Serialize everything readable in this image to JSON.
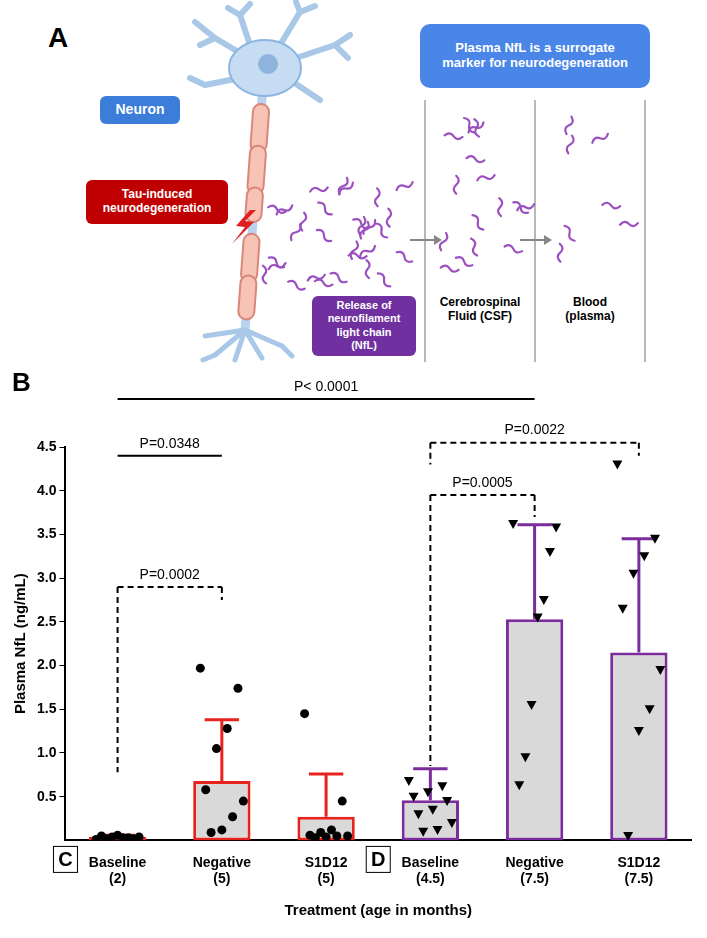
{
  "diagram": {
    "panel_label": "A",
    "neuron_label": "Neuron",
    "injury_label": "Tau-induced neurodegeneration",
    "title": "Plasma NfL is a surrogate marker for neurodegeneration",
    "release_label": "Release of neurofilament light chain (NfL)",
    "compartments": [
      "Cerebrospinal Fluid (CSF)",
      "Blood (plasma)"
    ]
  },
  "chart_data": {
    "type": "bar",
    "panel_label": "B",
    "x_label": "Treatment (age in months)",
    "y_label": "Plasma NfL (ng/mL)",
    "ylim": [
      0,
      4.5
    ],
    "yticks": [
      0.5,
      {
        "value": 1,
        "label": "1.0"
      },
      1.5,
      {
        "value": 2,
        "label": "2.0"
      },
      2.5,
      {
        "value": 3,
        "label": "3.0"
      },
      3.5,
      {
        "value": 4,
        "label": "4.0"
      },
      4.5
    ],
    "grid": false,
    "groups": [
      {
        "label": "C",
        "color": "#e8231e",
        "marker": "circle",
        "categories": [
          "Baseline (2)",
          "Negative (5)",
          "S1D12 (5)"
        ],
        "values": [
          0.04,
          0.68,
          0.27
        ],
        "errors": [
          0.02,
          0.7,
          0.49
        ],
        "points": [
          [
            0.01,
            0.02,
            0.03,
            0.04,
            0.05,
            0.04,
            0.03,
            0.06,
            0.02
          ],
          [
            1.97,
            1.74,
            1.28,
            1.05,
            0.58,
            0.45,
            0.27,
            0.12,
            0.09
          ],
          [
            1.45,
            0.45,
            0.12,
            0.09,
            0.06,
            0.05,
            0.05,
            0.04,
            0.03
          ]
        ]
      },
      {
        "label": "D",
        "color": "#7b2d9b",
        "marker": "triangle-down",
        "categories": [
          "Baseline (4.5)",
          "Negative (7.5)",
          "S1D12 (7.5)"
        ],
        "values": [
          0.46,
          2.53,
          2.15
        ],
        "errors": [
          0.36,
          1.08,
          1.3
        ],
        "points": [
          [
            0.68,
            0.62,
            0.55,
            0.5,
            0.45,
            0.35,
            0.3,
            0.2,
            0.12,
            0.1
          ],
          [
            3.62,
            3.58,
            3.3,
            2.75,
            2.55,
            1.55,
            0.95,
            0.63
          ],
          [
            4.3,
            3.45,
            3.25,
            3.05,
            2.65,
            1.95,
            1.5,
            1.25,
            0.05
          ]
        ]
      }
    ],
    "comparisons": [
      {
        "label": "P< 0.0001",
        "from": "Baseline (2)",
        "to": "Negative (7.5)",
        "y": 5.05,
        "line_style": "solid"
      },
      {
        "label": "P=0.0348",
        "from": "Baseline (2)",
        "to": "Negative (5)",
        "y": 4.4,
        "line_style": "solid"
      },
      {
        "label": "P=0.0002",
        "from": "Baseline (2)",
        "to": "Negative (5)",
        "y": 2.9,
        "ends": [
          0.78,
          2.75
        ],
        "line_style": "dashed"
      },
      {
        "label": "P=0.0005",
        "from": "Baseline (4.5)",
        "to": "Negative (7.5)",
        "y": 3.95,
        "ends": [
          0.85,
          3.7
        ],
        "line_style": "dashed"
      },
      {
        "label": "P=0.0022",
        "from": "Baseline (4.5)",
        "to": "S1D12 (7.5)",
        "y": 4.55,
        "ends": [
          4.3,
          4.4
        ],
        "line_style": "dashed"
      }
    ]
  }
}
